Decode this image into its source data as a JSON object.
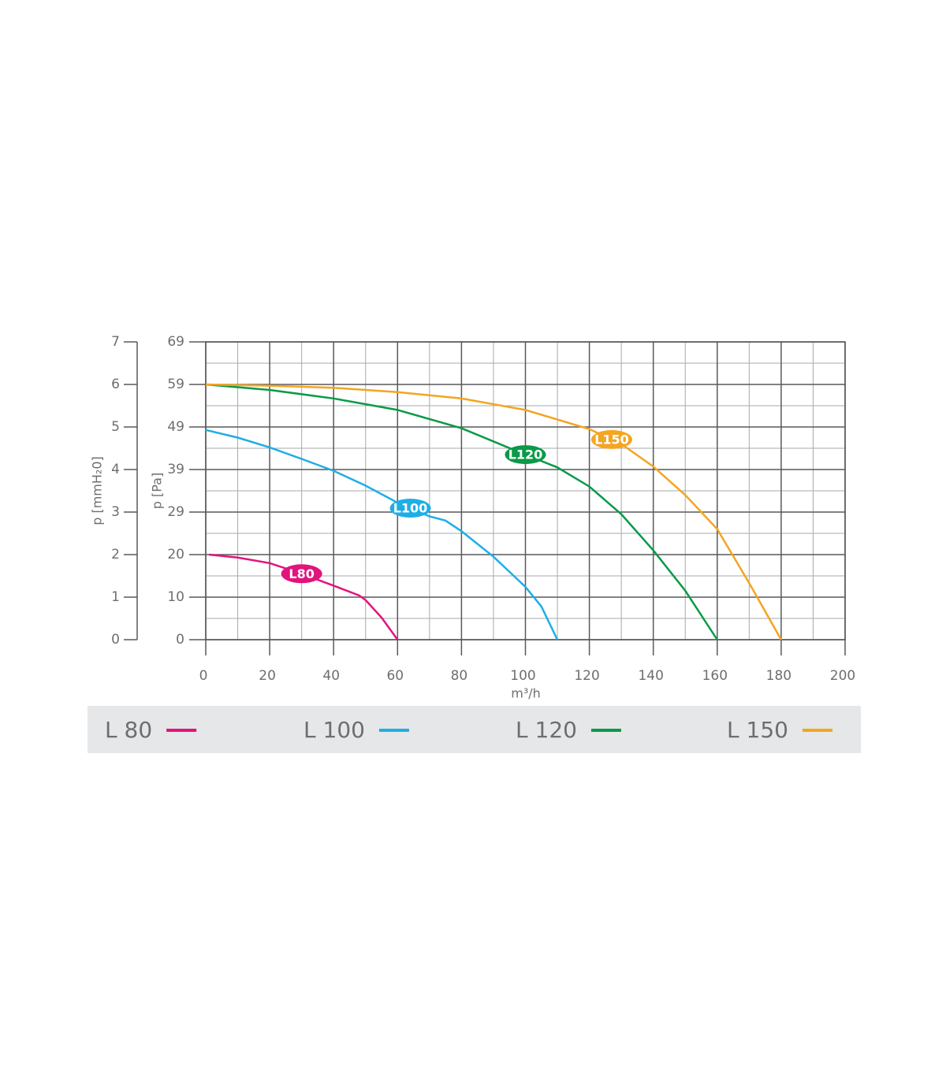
{
  "chart_data": {
    "type": "line",
    "xlabel": "m³/h",
    "ylabel": "p [mmH₂0]",
    "y2label": "p [Pa]",
    "xlim": [
      0,
      200
    ],
    "xticks": [
      0,
      20,
      40,
      60,
      80,
      100,
      120,
      140,
      160,
      180,
      200
    ],
    "ylim": [
      0,
      7
    ],
    "yticks": [
      0,
      1,
      2,
      3,
      4,
      5,
      6,
      7
    ],
    "y2lim": [
      0,
      68.67
    ],
    "y2ticks": [
      0,
      {
        "value": 9.81,
        "label": "10"
      },
      {
        "value": 19.62,
        "label": "20"
      },
      {
        "value": 29.43,
        "label": "29"
      },
      {
        "value": 39.24,
        "label": "39"
      },
      {
        "value": 49.05,
        "label": "49"
      },
      {
        "value": 58.86,
        "label": "59"
      },
      {
        "value": 68.67,
        "label": "69"
      }
    ],
    "grid": true,
    "series": [
      {
        "name": "L 80",
        "label": "L80",
        "color": "#e2137d",
        "x": [
          1,
          10,
          20,
          30,
          40,
          48,
          50,
          55,
          60
        ],
        "values": [
          2.0,
          1.93,
          1.8,
          1.55,
          1.27,
          1.04,
          0.93,
          0.52,
          0
        ]
      },
      {
        "name": "L 100",
        "label": "L100",
        "color": "#1eaee6",
        "x": [
          0,
          10,
          20,
          30,
          40,
          50,
          60,
          70,
          75,
          80,
          90,
          100,
          105,
          110
        ],
        "values": [
          4.93,
          4.75,
          4.52,
          4.25,
          3.97,
          3.62,
          3.22,
          2.9,
          2.8,
          2.55,
          1.95,
          1.24,
          0.78,
          0
        ]
      },
      {
        "name": "L 120",
        "label": "L120",
        "color": "#0a9a48",
        "x": [
          0,
          20,
          40,
          60,
          80,
          100,
          110,
          120,
          130,
          140,
          150,
          160
        ],
        "values": [
          6.0,
          5.87,
          5.67,
          5.4,
          4.97,
          4.35,
          4.05,
          3.6,
          2.95,
          2.1,
          1.15,
          0
        ]
      },
      {
        "name": "L 150",
        "label": "L150",
        "color": "#f4a521",
        "x": [
          0,
          20,
          40,
          60,
          80,
          100,
          120,
          130,
          140,
          150,
          160,
          170,
          180
        ],
        "values": [
          6.0,
          5.97,
          5.92,
          5.82,
          5.67,
          5.4,
          4.95,
          4.6,
          4.07,
          3.4,
          2.6,
          1.33,
          0
        ]
      }
    ]
  }
}
